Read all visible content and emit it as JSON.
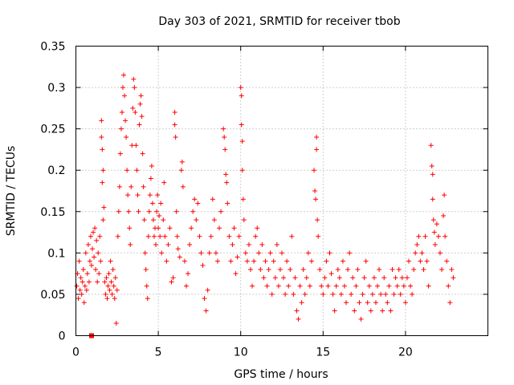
{
  "chart_data": {
    "type": "scatter",
    "title": "Day 303 of 2021, SRMTID for receiver tbob",
    "xlabel": "GPS time / hours",
    "ylabel": "SRMTID / TECUs",
    "xlim": [
      0,
      25
    ],
    "ylim": [
      0,
      0.35
    ],
    "x_ticks": [
      0,
      5,
      10,
      15,
      20
    ],
    "x_tick_labels": [
      "0",
      "5",
      "10",
      "15",
      "20"
    ],
    "y_ticks": [
      0,
      0.05,
      0.1,
      0.15,
      0.2,
      0.25,
      0.3,
      0.35
    ],
    "y_tick_labels": [
      "0",
      "0.05",
      "0.1",
      "0.15",
      "0.2",
      "0.25",
      "0.3",
      "0.35"
    ],
    "grid": true,
    "marker": "plus",
    "color": "#ff0000",
    "outlier_marker": {
      "x": 0.95,
      "y": 0.0,
      "shape": "square"
    },
    "series": [
      {
        "name": "SRMTID",
        "points": [
          [
            0.05,
            0.06
          ],
          [
            0.1,
            0.075
          ],
          [
            0.15,
            0.045
          ],
          [
            0.2,
            0.09
          ],
          [
            0.25,
            0.055
          ],
          [
            0.3,
            0.07
          ],
          [
            0.35,
            0.05
          ],
          [
            0.4,
            0.065
          ],
          [
            0.45,
            0.08
          ],
          [
            0.5,
            0.04
          ],
          [
            0.55,
            0.06
          ],
          [
            0.6,
            0.1
          ],
          [
            0.65,
            0.055
          ],
          [
            0.7,
            0.075
          ],
          [
            0.75,
            0.11
          ],
          [
            0.8,
            0.065
          ],
          [
            0.85,
            0.09
          ],
          [
            0.9,
            0.12
          ],
          [
            0.95,
            0.085
          ],
          [
            1.0,
            0.105
          ],
          [
            1.05,
            0.125
          ],
          [
            1.1,
            0.095
          ],
          [
            1.15,
            0.13
          ],
          [
            1.2,
            0.08
          ],
          [
            1.25,
            0.115
          ],
          [
            1.3,
            0.065
          ],
          [
            1.35,
            0.1
          ],
          [
            1.4,
            0.075
          ],
          [
            1.45,
            0.12
          ],
          [
            1.5,
            0.09
          ],
          [
            1.55,
            0.26
          ],
          [
            1.55,
            0.24
          ],
          [
            1.6,
            0.225
          ],
          [
            1.6,
            0.185
          ],
          [
            1.65,
            0.2
          ],
          [
            1.65,
            0.14
          ],
          [
            1.7,
            0.155
          ],
          [
            1.75,
            0.065
          ],
          [
            1.8,
            0.05
          ],
          [
            1.85,
            0.07
          ],
          [
            1.9,
            0.045
          ],
          [
            1.95,
            0.06
          ],
          [
            2.0,
            0.075
          ],
          [
            2.05,
            0.055
          ],
          [
            2.1,
            0.09
          ],
          [
            2.15,
            0.065
          ],
          [
            2.2,
            0.05
          ],
          [
            2.25,
            0.08
          ],
          [
            2.3,
            0.06
          ],
          [
            2.35,
            0.045
          ],
          [
            2.4,
            0.07
          ],
          [
            2.45,
            0.015
          ],
          [
            2.5,
            0.055
          ],
          [
            2.55,
            0.12
          ],
          [
            2.6,
            0.15
          ],
          [
            2.65,
            0.18
          ],
          [
            2.7,
            0.22
          ],
          [
            2.75,
            0.25
          ],
          [
            2.8,
            0.27
          ],
          [
            2.85,
            0.3
          ],
          [
            2.9,
            0.315
          ],
          [
            2.95,
            0.29
          ],
          [
            3.0,
            0.26
          ],
          [
            3.05,
            0.24
          ],
          [
            3.1,
            0.2
          ],
          [
            3.15,
            0.17
          ],
          [
            3.2,
            0.15
          ],
          [
            3.25,
            0.13
          ],
          [
            3.3,
            0.11
          ],
          [
            3.35,
            0.18
          ],
          [
            3.4,
            0.23
          ],
          [
            3.45,
            0.275
          ],
          [
            3.5,
            0.31
          ],
          [
            3.55,
            0.3
          ],
          [
            3.6,
            0.27
          ],
          [
            3.65,
            0.23
          ],
          [
            3.7,
            0.2
          ],
          [
            3.75,
            0.17
          ],
          [
            3.8,
            0.15
          ],
          [
            3.85,
            0.255
          ],
          [
            3.9,
            0.28
          ],
          [
            3.95,
            0.29
          ],
          [
            4.0,
            0.265
          ],
          [
            4.05,
            0.22
          ],
          [
            4.1,
            0.18
          ],
          [
            4.15,
            0.14
          ],
          [
            4.2,
            0.1
          ],
          [
            4.25,
            0.08
          ],
          [
            4.3,
            0.06
          ],
          [
            4.35,
            0.045
          ],
          [
            4.4,
            0.12
          ],
          [
            4.45,
            0.15
          ],
          [
            4.5,
            0.17
          ],
          [
            4.55,
            0.19
          ],
          [
            4.6,
            0.205
          ],
          [
            4.65,
            0.16
          ],
          [
            4.7,
            0.14
          ],
          [
            4.75,
            0.12
          ],
          [
            4.8,
            0.13
          ],
          [
            4.85,
            0.11
          ],
          [
            4.9,
            0.15
          ],
          [
            4.95,
            0.17
          ],
          [
            5.0,
            0.13
          ],
          [
            5.05,
            0.145
          ],
          [
            5.1,
            0.12
          ],
          [
            5.15,
            0.16
          ],
          [
            5.2,
            0.1
          ],
          [
            5.3,
            0.14
          ],
          [
            5.35,
            0.185
          ],
          [
            5.4,
            0.12
          ],
          [
            5.5,
            0.09
          ],
          [
            5.6,
            0.11
          ],
          [
            5.7,
            0.13
          ],
          [
            5.8,
            0.065
          ],
          [
            5.9,
            0.07
          ],
          [
            6.0,
            0.255
          ],
          [
            6.0,
            0.27
          ],
          [
            6.05,
            0.24
          ],
          [
            6.1,
            0.15
          ],
          [
            6.15,
            0.12
          ],
          [
            6.2,
            0.105
          ],
          [
            6.3,
            0.095
          ],
          [
            6.4,
            0.2
          ],
          [
            6.45,
            0.21
          ],
          [
            6.5,
            0.18
          ],
          [
            6.6,
            0.09
          ],
          [
            6.7,
            0.06
          ],
          [
            6.8,
            0.075
          ],
          [
            6.9,
            0.11
          ],
          [
            7.0,
            0.13
          ],
          [
            7.1,
            0.15
          ],
          [
            7.2,
            0.165
          ],
          [
            7.3,
            0.14
          ],
          [
            7.4,
            0.16
          ],
          [
            7.5,
            0.12
          ],
          [
            7.6,
            0.1
          ],
          [
            7.7,
            0.085
          ],
          [
            7.8,
            0.045
          ],
          [
            7.9,
            0.03
          ],
          [
            8.0,
            0.055
          ],
          [
            8.1,
            0.1
          ],
          [
            8.2,
            0.12
          ],
          [
            8.3,
            0.165
          ],
          [
            8.4,
            0.14
          ],
          [
            8.5,
            0.1
          ],
          [
            8.6,
            0.09
          ],
          [
            8.7,
            0.13
          ],
          [
            8.8,
            0.15
          ],
          [
            8.95,
            0.25
          ],
          [
            9.0,
            0.24
          ],
          [
            9.05,
            0.225
          ],
          [
            9.1,
            0.195
          ],
          [
            9.15,
            0.185
          ],
          [
            9.2,
            0.16
          ],
          [
            9.3,
            0.12
          ],
          [
            9.4,
            0.09
          ],
          [
            9.5,
            0.11
          ],
          [
            9.6,
            0.13
          ],
          [
            9.7,
            0.075
          ],
          [
            9.8,
            0.095
          ],
          [
            9.9,
            0.12
          ],
          [
            10.0,
            0.3
          ],
          [
            10.05,
            0.29
          ],
          [
            10.05,
            0.255
          ],
          [
            10.1,
            0.235
          ],
          [
            10.1,
            0.2
          ],
          [
            10.15,
            0.165
          ],
          [
            10.2,
            0.14
          ],
          [
            10.3,
            0.1
          ],
          [
            10.4,
            0.09
          ],
          [
            10.5,
            0.11
          ],
          [
            10.6,
            0.08
          ],
          [
            10.7,
            0.06
          ],
          [
            10.8,
            0.09
          ],
          [
            10.9,
            0.12
          ],
          [
            11.0,
            0.13
          ],
          [
            11.1,
            0.1
          ],
          [
            11.2,
            0.08
          ],
          [
            11.3,
            0.11
          ],
          [
            11.4,
            0.07
          ],
          [
            11.5,
            0.09
          ],
          [
            11.6,
            0.06
          ],
          [
            11.7,
            0.08
          ],
          [
            11.8,
            0.1
          ],
          [
            11.9,
            0.05
          ],
          [
            12.0,
            0.09
          ],
          [
            12.1,
            0.07
          ],
          [
            12.2,
            0.11
          ],
          [
            12.3,
            0.06
          ],
          [
            12.4,
            0.08
          ],
          [
            12.5,
            0.1
          ],
          [
            12.6,
            0.07
          ],
          [
            12.7,
            0.05
          ],
          [
            12.8,
            0.09
          ],
          [
            12.9,
            0.06
          ],
          [
            13.0,
            0.08
          ],
          [
            13.1,
            0.12
          ],
          [
            13.2,
            0.05
          ],
          [
            13.3,
            0.07
          ],
          [
            13.4,
            0.03
          ],
          [
            13.5,
            0.02
          ],
          [
            13.6,
            0.06
          ],
          [
            13.7,
            0.04
          ],
          [
            13.8,
            0.08
          ],
          [
            13.9,
            0.05
          ],
          [
            14.0,
            0.07
          ],
          [
            14.1,
            0.1
          ],
          [
            14.2,
            0.06
          ],
          [
            14.3,
            0.09
          ],
          [
            14.45,
            0.2
          ],
          [
            14.5,
            0.175
          ],
          [
            14.55,
            0.165
          ],
          [
            14.6,
            0.24
          ],
          [
            14.6,
            0.225
          ],
          [
            14.65,
            0.14
          ],
          [
            14.7,
            0.12
          ],
          [
            14.8,
            0.08
          ],
          [
            14.9,
            0.06
          ],
          [
            15.0,
            0.05
          ],
          [
            15.1,
            0.07
          ],
          [
            15.2,
            0.09
          ],
          [
            15.3,
            0.06
          ],
          [
            15.4,
            0.1
          ],
          [
            15.5,
            0.075
          ],
          [
            15.6,
            0.05
          ],
          [
            15.7,
            0.03
          ],
          [
            15.8,
            0.06
          ],
          [
            15.9,
            0.08
          ],
          [
            16.0,
            0.07
          ],
          [
            16.1,
            0.05
          ],
          [
            16.2,
            0.09
          ],
          [
            16.3,
            0.06
          ],
          [
            16.4,
            0.04
          ],
          [
            16.5,
            0.08
          ],
          [
            16.6,
            0.1
          ],
          [
            16.7,
            0.05
          ],
          [
            16.8,
            0.07
          ],
          [
            16.9,
            0.03
          ],
          [
            17.0,
            0.06
          ],
          [
            17.1,
            0.08
          ],
          [
            17.2,
            0.04
          ],
          [
            17.3,
            0.02
          ],
          [
            17.4,
            0.05
          ],
          [
            17.5,
            0.07
          ],
          [
            17.6,
            0.09
          ],
          [
            17.7,
            0.04
          ],
          [
            17.8,
            0.06
          ],
          [
            17.9,
            0.03
          ],
          [
            18.0,
            0.05
          ],
          [
            18.1,
            0.07
          ],
          [
            18.2,
            0.04
          ],
          [
            18.3,
            0.06
          ],
          [
            18.4,
            0.08
          ],
          [
            18.5,
            0.05
          ],
          [
            18.6,
            0.03
          ],
          [
            18.7,
            0.07
          ],
          [
            18.8,
            0.05
          ],
          [
            18.9,
            0.04
          ],
          [
            19.0,
            0.06
          ],
          [
            19.1,
            0.03
          ],
          [
            19.2,
            0.08
          ],
          [
            19.3,
            0.05
          ],
          [
            19.4,
            0.07
          ],
          [
            19.5,
            0.06
          ],
          [
            19.6,
            0.08
          ],
          [
            19.7,
            0.05
          ],
          [
            19.8,
            0.07
          ],
          [
            19.9,
            0.06
          ],
          [
            20.0,
            0.04
          ],
          [
            20.1,
            0.07
          ],
          [
            20.2,
            0.09
          ],
          [
            20.3,
            0.06
          ],
          [
            20.4,
            0.05
          ],
          [
            20.5,
            0.08
          ],
          [
            20.6,
            0.1
          ],
          [
            20.7,
            0.11
          ],
          [
            20.8,
            0.12
          ],
          [
            20.9,
            0.09
          ],
          [
            21.0,
            0.1
          ],
          [
            21.1,
            0.08
          ],
          [
            21.2,
            0.12
          ],
          [
            21.3,
            0.09
          ],
          [
            21.4,
            0.06
          ],
          [
            21.55,
            0.23
          ],
          [
            21.6,
            0.205
          ],
          [
            21.65,
            0.195
          ],
          [
            21.65,
            0.165
          ],
          [
            21.7,
            0.14
          ],
          [
            21.75,
            0.125
          ],
          [
            21.8,
            0.11
          ],
          [
            21.9,
            0.135
          ],
          [
            22.0,
            0.12
          ],
          [
            22.1,
            0.1
          ],
          [
            22.2,
            0.08
          ],
          [
            22.3,
            0.145
          ],
          [
            22.35,
            0.17
          ],
          [
            22.4,
            0.12
          ],
          [
            22.5,
            0.09
          ],
          [
            22.6,
            0.06
          ],
          [
            22.7,
            0.04
          ],
          [
            22.8,
            0.08
          ],
          [
            22.9,
            0.07
          ]
        ]
      }
    ]
  }
}
